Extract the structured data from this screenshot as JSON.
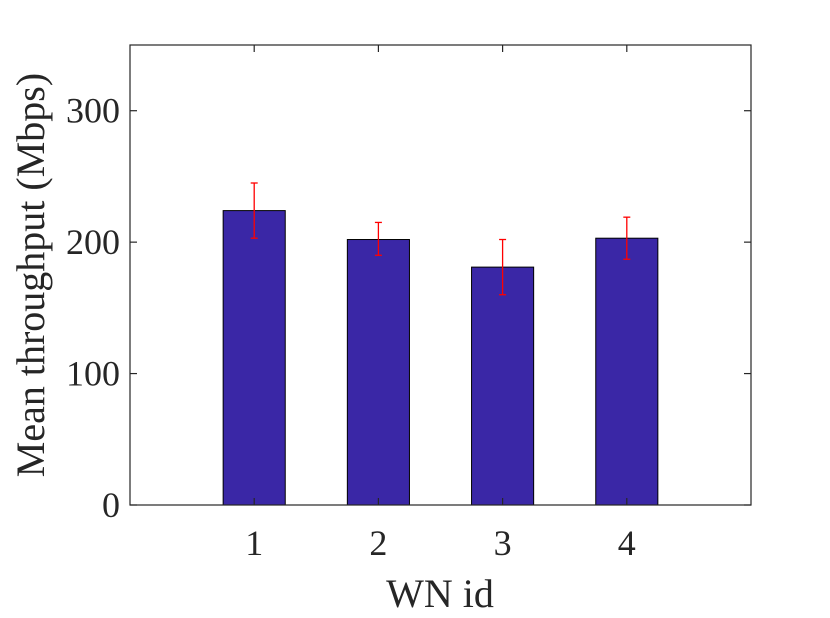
{
  "chart_data": {
    "type": "bar",
    "title": "",
    "xlabel": "WN id",
    "ylabel": "Mean throughput (Mbps)",
    "categories": [
      "1",
      "2",
      "3",
      "4"
    ],
    "values": [
      224,
      202,
      181,
      203
    ],
    "error_low": [
      203,
      190,
      160,
      187
    ],
    "error_high": [
      245,
      215,
      202,
      219
    ],
    "ylim": [
      0,
      350
    ],
    "xlim": [
      0,
      5
    ],
    "yticks": [
      0,
      100,
      200,
      300
    ],
    "ytick_labels": [
      "0",
      "100",
      "200",
      "300"
    ],
    "grid": false,
    "legend": "none",
    "colors": {
      "bar": "#3A27A6",
      "error_bar": "#FF0000",
      "axes": "#262626"
    }
  }
}
